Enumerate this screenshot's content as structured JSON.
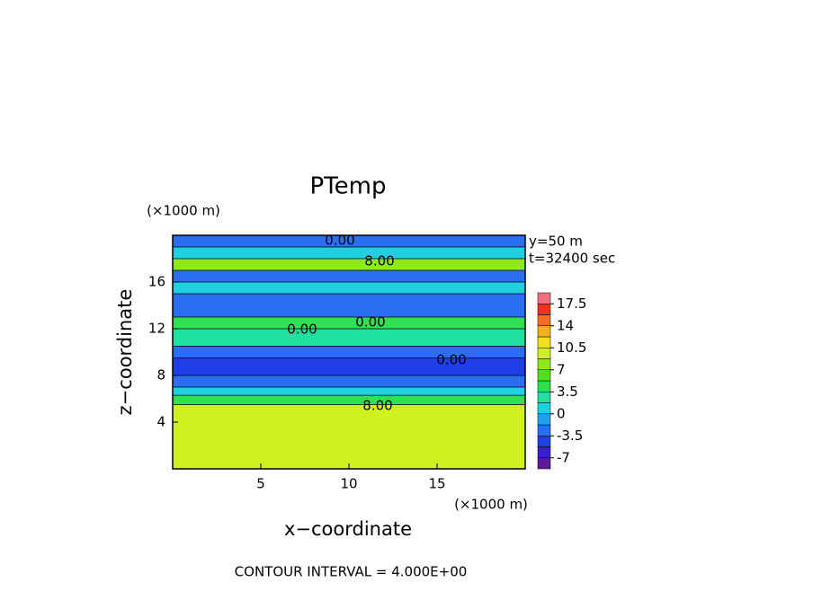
{
  "chart_data": {
    "type": "contour",
    "title": "PTemp",
    "x_label": "x−coordinate",
    "y_label": "z−coordinate",
    "x_unit": "(×1000 m)",
    "y_unit": "(×1000 m)",
    "info": [
      "y=50 m",
      "t=32400 sec"
    ],
    "footer": "CONTOUR INTERVAL = 4.000E+00",
    "xlim": [
      0,
      20
    ],
    "ylim": [
      0,
      20
    ],
    "xticks": [
      5,
      10,
      15
    ],
    "yticks": [
      4,
      8,
      12,
      16
    ],
    "field": [
      [
        0,
        5.5,
        10
      ],
      [
        5.5,
        6.3,
        5
      ],
      [
        6.3,
        7,
        1
      ],
      [
        7,
        8,
        -2
      ],
      [
        8,
        9.5,
        -5
      ],
      [
        9.5,
        10.5,
        -2
      ],
      [
        10.5,
        12,
        3
      ],
      [
        12,
        13,
        5
      ],
      [
        13,
        15,
        -3
      ],
      [
        15,
        16,
        1
      ],
      [
        16,
        17,
        -3
      ],
      [
        17,
        18,
        8
      ],
      [
        18,
        19,
        1
      ],
      [
        19,
        20,
        -2
      ]
    ],
    "contour_labels": [
      "0.00",
      "8.00",
      "0.00",
      "0.00",
      "0.00",
      "8.00"
    ],
    "colorbar": {
      "lim": [
        -8.75,
        19.25
      ],
      "ticks": [
        -7,
        -3.5,
        0,
        3.5,
        7,
        10.5,
        14,
        17.5
      ],
      "levels": [
        -8.75,
        -7,
        -5.25,
        -3.5,
        -1.75,
        0,
        1.75,
        3.5,
        5.25,
        7,
        8.75,
        10.5,
        12.25,
        14,
        15.75,
        17.5,
        19.25
      ],
      "colors": [
        "#5a1a9a",
        "#3a1fc8",
        "#1f3fe6",
        "#2a6ff0",
        "#1fa0f0",
        "#20d0e0",
        "#20e0a0",
        "#30e050",
        "#50e020",
        "#90e818",
        "#d0f020",
        "#f0e020",
        "#f0b020",
        "#f07020",
        "#f03020",
        "#f07080"
      ]
    }
  }
}
